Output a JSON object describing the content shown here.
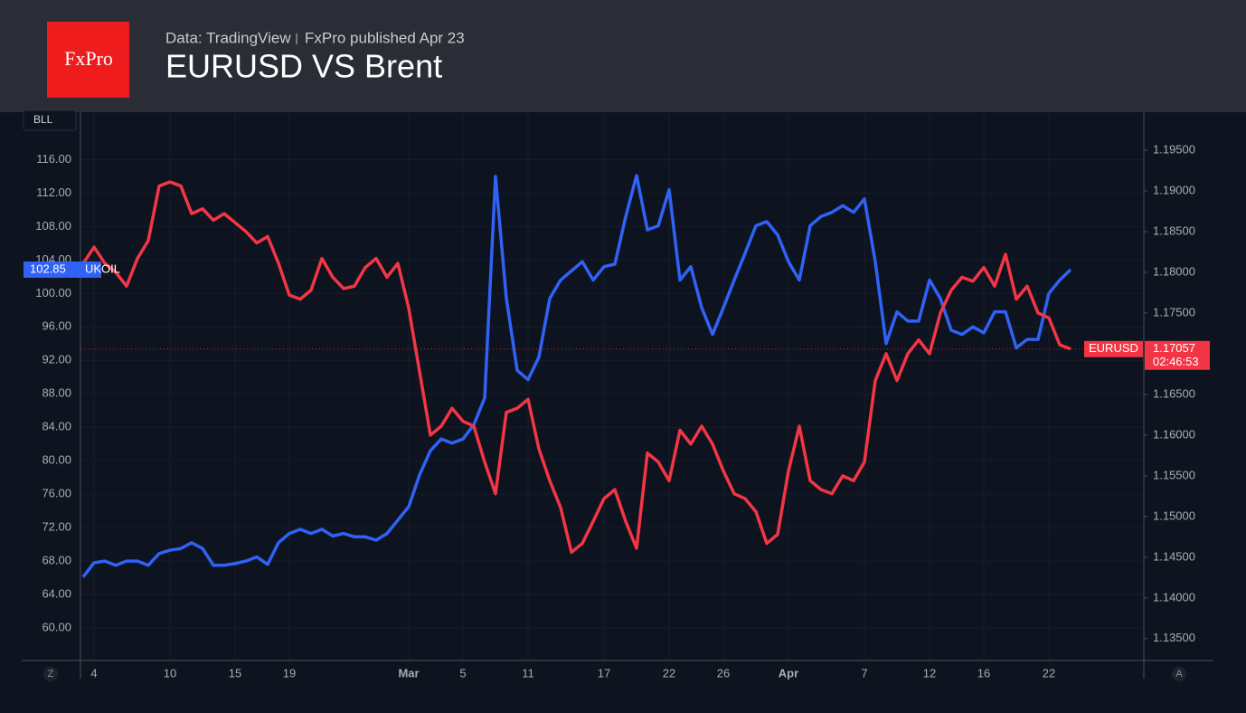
{
  "logo": "FxPro",
  "chart_data": {
    "type": "line",
    "title": "EURUSD VS Brent",
    "subtitle": [
      "Data: TradingView",
      "FxPro published Apr 23"
    ],
    "scale_label": "BLL",
    "axis_buttons": [
      "Z",
      "A"
    ],
    "countdown": "02:46:53",
    "grid": true,
    "categories": [
      null,
      "4",
      null,
      null,
      null,
      null,
      null,
      null,
      "10",
      null,
      null,
      null,
      null,
      null,
      "15",
      null,
      null,
      null,
      null,
      "19",
      null,
      null,
      null,
      null,
      null,
      null,
      null,
      null,
      null,
      null,
      "Mar",
      null,
      null,
      null,
      null,
      "5",
      null,
      null,
      null,
      null,
      null,
      "11",
      null,
      null,
      null,
      null,
      null,
      null,
      "17",
      null,
      null,
      null,
      null,
      null,
      "22",
      null,
      null,
      null,
      null,
      "26",
      null,
      null,
      null,
      null,
      null,
      "Apr",
      null,
      null,
      null,
      null,
      null,
      null,
      "7",
      null,
      null,
      null,
      null,
      null,
      "12",
      null,
      null,
      null,
      null,
      "16",
      null,
      null,
      null,
      null,
      null,
      "22",
      null,
      null
    ],
    "ylim": [
      56,
      122
    ],
    "yticks": [
      {
        "value": 60,
        "label": "60.00"
      },
      {
        "value": 64,
        "label": "64.00"
      },
      {
        "value": 68,
        "label": "68.00"
      },
      {
        "value": 72,
        "label": "72.00"
      },
      {
        "value": 76,
        "label": "76.00"
      },
      {
        "value": 80,
        "label": "80.00"
      },
      {
        "value": 84,
        "label": "84.00"
      },
      {
        "value": 88,
        "label": "88.00"
      },
      {
        "value": 92,
        "label": "92.00"
      },
      {
        "value": 96,
        "label": "96.00"
      },
      {
        "value": 100,
        "label": "100.00"
      },
      {
        "value": 104,
        "label": "104.00"
      },
      {
        "value": 108,
        "label": "108.00"
      },
      {
        "value": 112,
        "label": "112.00"
      },
      {
        "value": 116,
        "label": "116.00"
      }
    ],
    "y2lim": [
      1.1322,
      1.2
    ],
    "y2ticks": [
      {
        "value": 1.135,
        "label": "1.13500"
      },
      {
        "value": 1.14,
        "label": "1.14000"
      },
      {
        "value": 1.145,
        "label": "1.14500"
      },
      {
        "value": 1.15,
        "label": "1.15000"
      },
      {
        "value": 1.155,
        "label": "1.15500"
      },
      {
        "value": 1.16,
        "label": "1.16000"
      },
      {
        "value": 1.165,
        "label": "1.16500"
      },
      {
        "value": 1.17,
        "label": "1.17000"
      },
      {
        "value": 1.175,
        "label": "1.17500"
      },
      {
        "value": 1.18,
        "label": "1.18000"
      },
      {
        "value": 1.185,
        "label": "1.18500"
      },
      {
        "value": 1.19,
        "label": "1.19000"
      },
      {
        "value": 1.195,
        "label": "1.19500"
      }
    ],
    "series": [
      {
        "name": "UKOIL",
        "color": "#2f62f5",
        "last_value": 102.85,
        "values": [
          66.1,
          67.8,
          68.0,
          67.5,
          68.0,
          68.0,
          67.5,
          68.9,
          69.3,
          69.5,
          70.2,
          69.5,
          67.5,
          67.5,
          67.7,
          68.0,
          68.5,
          67.6,
          70.2,
          71.3,
          71.8,
          71.3,
          71.8,
          71.0,
          71.3,
          70.9,
          70.9,
          70.5,
          71.3,
          72.9,
          74.5,
          78.3,
          81.2,
          82.6,
          82.1,
          82.6,
          84.3,
          87.5,
          114.0,
          99.4,
          90.8,
          89.7,
          92.4,
          99.4,
          101.6,
          102.7,
          103.8,
          101.6,
          103.2,
          103.5,
          109.2,
          114.1,
          107.6,
          108.1,
          112.4,
          101.6,
          103.2,
          98.3,
          95.1,
          98.3,
          101.6,
          104.8,
          108.1,
          108.6,
          107.0,
          103.8,
          101.6,
          108.1,
          109.2,
          109.7,
          110.5,
          109.7,
          111.3,
          103.8,
          94.0,
          97.8,
          96.7,
          96.7,
          101.6,
          99.4,
          95.6,
          95.1,
          96.0,
          95.3,
          97.8,
          97.8,
          93.5,
          94.5,
          94.5,
          100.0,
          101.6,
          102.85
        ]
      },
      {
        "name": "EURUSD",
        "color": "#f23645",
        "axis": "y2",
        "last_value": 1.17057,
        "values": [
          1.1811,
          1.1831,
          1.1811,
          1.18,
          1.1783,
          1.1817,
          1.1839,
          1.1906,
          1.1911,
          1.1906,
          1.1872,
          1.1878,
          1.1864,
          1.1872,
          1.1861,
          1.185,
          1.1836,
          1.1844,
          1.1811,
          1.1772,
          1.1767,
          1.1778,
          1.1817,
          1.1794,
          1.178,
          1.1783,
          1.1806,
          1.1817,
          1.1794,
          1.1811,
          1.1756,
          1.1678,
          1.16,
          1.1611,
          1.1633,
          1.1617,
          1.1611,
          1.1567,
          1.1528,
          1.1628,
          1.1633,
          1.1644,
          1.1583,
          1.1544,
          1.1511,
          1.1456,
          1.1467,
          1.1494,
          1.1522,
          1.1533,
          1.1494,
          1.1461,
          1.1578,
          1.1567,
          1.1544,
          1.1606,
          1.1589,
          1.1611,
          1.1589,
          1.1556,
          1.1528,
          1.1522,
          1.1506,
          1.1467,
          1.1478,
          1.1556,
          1.1611,
          1.1544,
          1.1533,
          1.1528,
          1.155,
          1.1544,
          1.1567,
          1.1667,
          1.17,
          1.1667,
          1.17,
          1.1717,
          1.17,
          1.175,
          1.1778,
          1.1794,
          1.1789,
          1.1806,
          1.1783,
          1.1822,
          1.1767,
          1.1783,
          1.175,
          1.1744,
          1.1711,
          1.17057
        ]
      }
    ]
  }
}
